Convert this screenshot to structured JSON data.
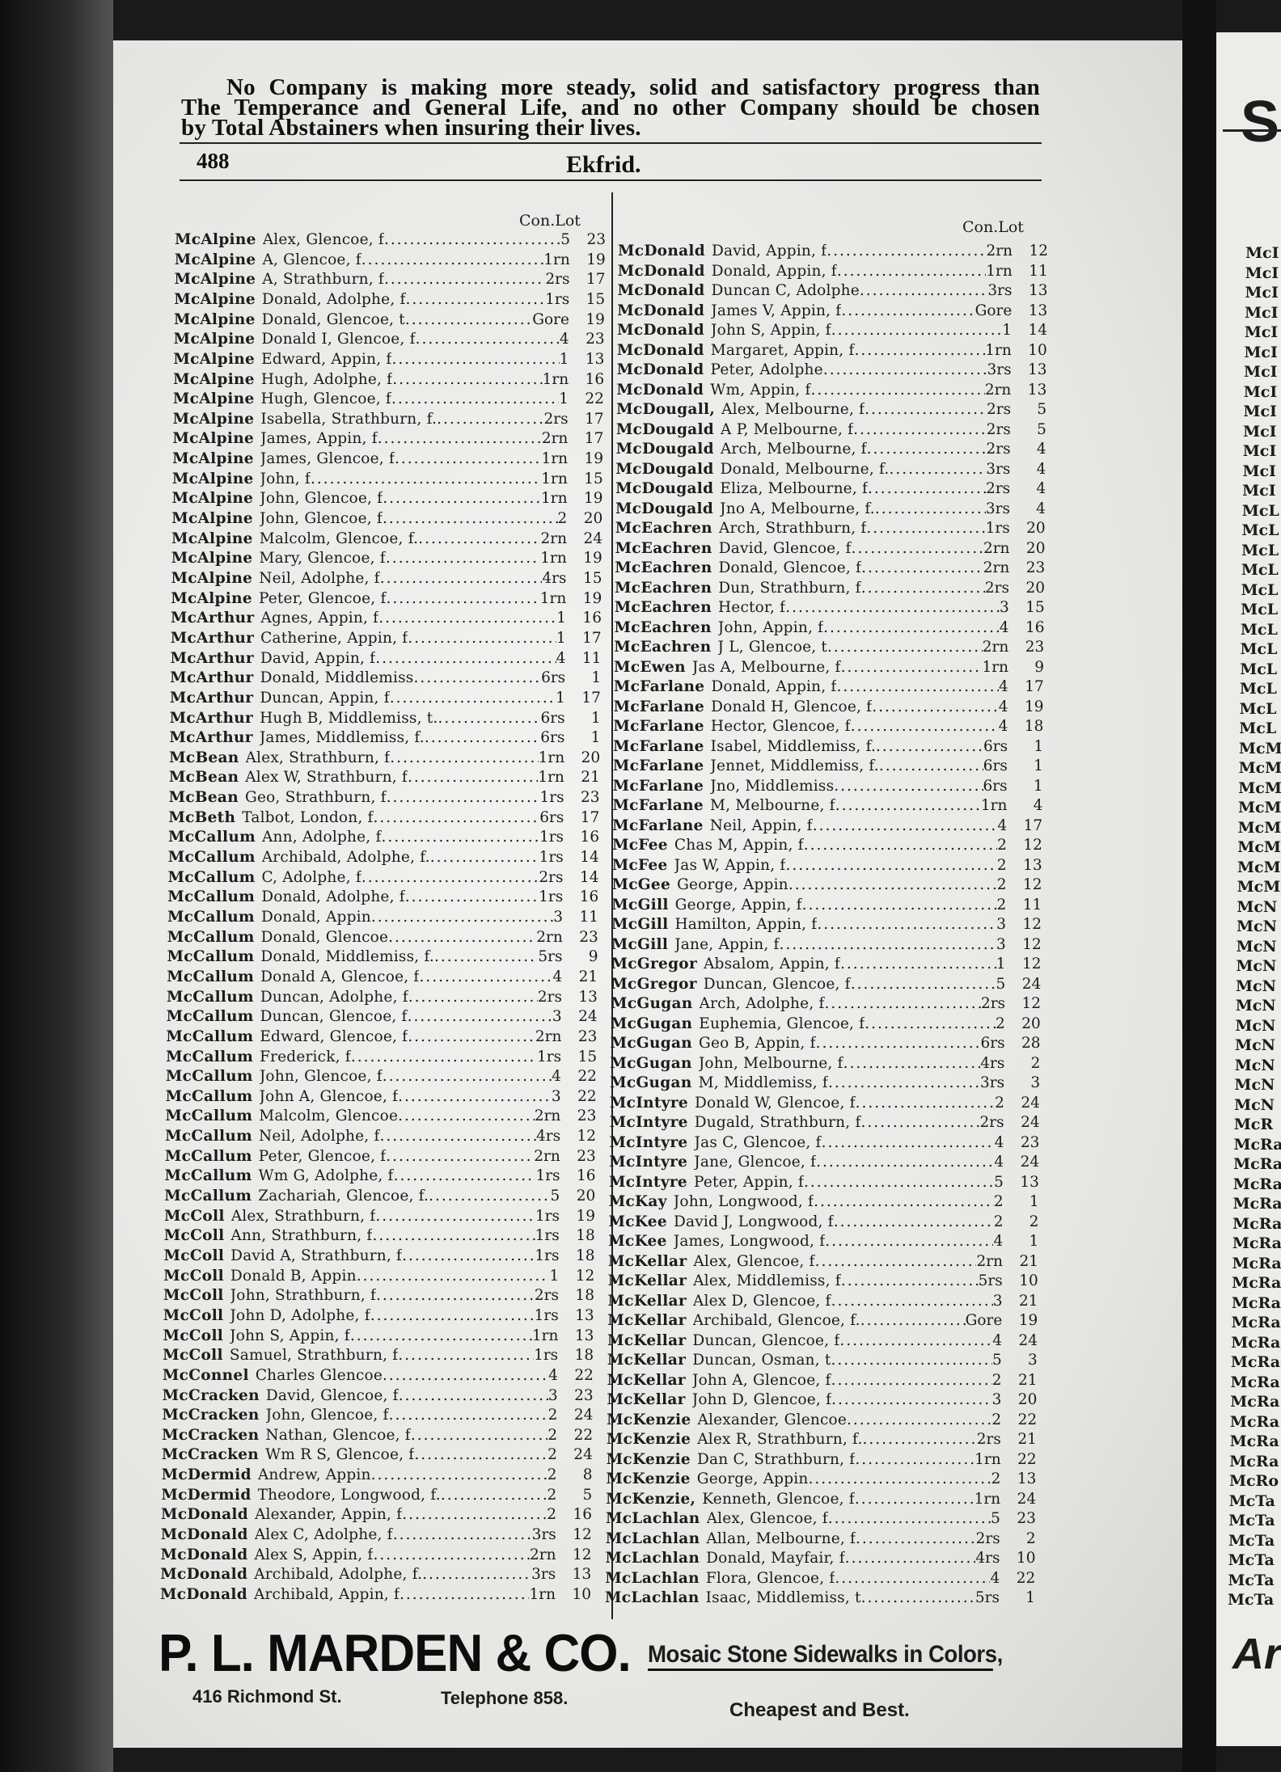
{
  "header_ad": {
    "line1": "No Company is making more steady, solid and satisfactory progress than",
    "line2": "The Temperance and General Life, and no other Company should be chosen",
    "line3": "by Total Abstainers when insuring their lives."
  },
  "page": {
    "number": "488",
    "title": "Ekfrid."
  },
  "column_header": "Con.Lot",
  "left_column": {
    "entries": [
      [
        "McAlpine",
        "Alex, Glencoe, f",
        "5",
        "23"
      ],
      [
        "McAlpine",
        "A, Glencoe, f",
        "1rn",
        "19"
      ],
      [
        "McAlpine",
        "A, Strathburn, f",
        "2rs",
        "17"
      ],
      [
        "McAlpine",
        "Donald, Adolphe, f",
        "1rs",
        "15"
      ],
      [
        "McAlpine",
        "Donald, Glencoe, t",
        "Gore",
        "19"
      ],
      [
        "McAlpine",
        "Donald I, Glencoe, f",
        "4",
        "23"
      ],
      [
        "McAlpine",
        "Edward, Appin, f",
        "1",
        "13"
      ],
      [
        "McAlpine",
        "Hugh, Adolphe, f",
        "1rn",
        "16"
      ],
      [
        "McAlpine",
        "Hugh, Glencoe, f",
        "1",
        "22"
      ],
      [
        "McAlpine",
        "Isabella, Strathburn, f.",
        "2rs",
        "17"
      ],
      [
        "McAlpine",
        "James, Appin, f",
        "2rn",
        "17"
      ],
      [
        "McAlpine",
        "James, Glencoe, f",
        "1rn",
        "19"
      ],
      [
        "McAlpine",
        "John, f",
        "1rn",
        "15"
      ],
      [
        "McAlpine",
        "John, Glencoe, f",
        "1rn",
        "19"
      ],
      [
        "McAlpine",
        "John, Glencoe, f",
        "2",
        "20"
      ],
      [
        "McAlpine",
        "Malcolm, Glencoe, f.",
        "2rn",
        "24"
      ],
      [
        "McAlpine",
        "Mary, Glencoe, f",
        "1rn",
        "19"
      ],
      [
        "McAlpine",
        "Neil, Adolphe, f",
        "4rs",
        "15"
      ],
      [
        "McAlpine",
        "Peter, Glencoe, f",
        "1rn",
        "19"
      ],
      [
        "McArthur",
        "Agnes, Appin, f",
        "1",
        "16"
      ],
      [
        "McArthur",
        "Catherine, Appin, f",
        "1",
        "17"
      ],
      [
        "McArthur",
        "David, Appin, f",
        "4",
        "11"
      ],
      [
        "McArthur",
        "Donald, Middlemiss",
        "6rs",
        "1"
      ],
      [
        "McArthur",
        "Duncan, Appin, f",
        "1",
        "17"
      ],
      [
        "McArthur",
        "Hugh B, Middlemiss, t.",
        "6rs",
        "1"
      ],
      [
        "McArthur",
        "James, Middlemiss, f.",
        "6rs",
        "1"
      ],
      [
        "McBean",
        "Alex, Strathburn, f",
        "1rn",
        "20"
      ],
      [
        "McBean",
        "Alex W, Strathburn, f",
        "1rn",
        "21"
      ],
      [
        "McBean",
        "Geo, Strathburn, f",
        "1rs",
        "23"
      ],
      [
        "McBeth",
        "Talbot, London, f",
        "6rs",
        "17"
      ],
      [
        "McCallum",
        "Ann, Adolphe, f",
        "1rs",
        "16"
      ],
      [
        "McCallum",
        "Archibald, Adolphe, f.",
        "1rs",
        "14"
      ],
      [
        "McCallum",
        "C, Adolphe, f",
        "2rs",
        "14"
      ],
      [
        "McCallum",
        "Donald, Adolphe, f",
        "1rs",
        "16"
      ],
      [
        "McCallum",
        "Donald, Appin",
        "3",
        "11"
      ],
      [
        "McCallum",
        "Donald, Glencoe",
        "2rn",
        "23"
      ],
      [
        "McCallum",
        "Donald, Middlemiss, f.",
        "5rs",
        "9"
      ],
      [
        "McCallum",
        "Donald A, Glencoe, f",
        "4",
        "21"
      ],
      [
        "McCallum",
        "Duncan, Adolphe, f",
        "2rs",
        "13"
      ],
      [
        "McCallum",
        "Duncan, Glencoe, f",
        "3",
        "24"
      ],
      [
        "McCallum",
        "Edward, Glencoe, f",
        "2rn",
        "23"
      ],
      [
        "McCallum",
        "Frederick, f",
        "1rs",
        "15"
      ],
      [
        "McCallum",
        "John, Glencoe, f",
        "4",
        "22"
      ],
      [
        "McCallum",
        "John A, Glencoe, f",
        "3",
        "22"
      ],
      [
        "McCallum",
        "Malcolm, Glencoe",
        "2rn",
        "23"
      ],
      [
        "McCallum",
        "Neil, Adolphe, f",
        "4rs",
        "12"
      ],
      [
        "McCallum",
        "Peter, Glencoe, f",
        "2rn",
        "23"
      ],
      [
        "McCallum",
        "Wm G, Adolphe, f",
        "1rs",
        "16"
      ],
      [
        "McCallum",
        "Zachariah, Glencoe, f.",
        "5",
        "20"
      ],
      [
        "McColl",
        "Alex, Strathburn, f",
        "1rs",
        "19"
      ],
      [
        "McColl",
        "Ann, Strathburn, f",
        "1rs",
        "18"
      ],
      [
        "McColl",
        "David A, Strathburn, f",
        "1rs",
        "18"
      ],
      [
        "McColl",
        "Donald B, Appin",
        "1",
        "12"
      ],
      [
        "McColl",
        "John, Strathburn, f",
        "2rs",
        "18"
      ],
      [
        "McColl",
        "John D, Adolphe, f",
        "1rs",
        "13"
      ],
      [
        "McColl",
        "John S, Appin, f",
        "1rn",
        "13"
      ],
      [
        "McColl",
        "Samuel, Strathburn, f",
        "1rs",
        "18"
      ],
      [
        "McConnel",
        "Charles Glencoe",
        "4",
        "22"
      ],
      [
        "McCracken",
        "David, Glencoe, f",
        "3",
        "23"
      ],
      [
        "McCracken",
        "John, Glencoe, f",
        "2",
        "24"
      ],
      [
        "McCracken",
        "Nathan, Glencoe, f",
        "2",
        "22"
      ],
      [
        "McCracken",
        "Wm R S, Glencoe, f",
        "2",
        "24"
      ],
      [
        "McDermid",
        "Andrew, Appin",
        "2",
        "8"
      ],
      [
        "McDermid",
        "Theodore, Longwood, f.",
        "2",
        "5"
      ],
      [
        "McDonald",
        "Alexander, Appin, f",
        "2",
        "16"
      ],
      [
        "McDonald",
        "Alex C, Adolphe, f",
        "3rs",
        "12"
      ],
      [
        "McDonald",
        "Alex S, Appin, f",
        "2rn",
        "12"
      ],
      [
        "McDonald",
        "Archibald, Adolphe, f.",
        "3rs",
        "13"
      ],
      [
        "McDonald",
        "Archibald, Appin, f",
        "1rn",
        "10"
      ]
    ]
  },
  "right_column": {
    "entries": [
      [
        "McDonald",
        "David, Appin, f",
        "2rn",
        "12"
      ],
      [
        "McDonald",
        "Donald, Appin, f",
        "1rn",
        "11"
      ],
      [
        "McDonald",
        "Duncan C, Adolphe",
        "3rs",
        "13"
      ],
      [
        "McDonald",
        "James V, Appin, f",
        "Gore",
        "13"
      ],
      [
        "McDonald",
        "John S, Appin, f",
        "1",
        "14"
      ],
      [
        "McDonald",
        "Margaret, Appin, f",
        "1rn",
        "10"
      ],
      [
        "McDonald",
        "Peter, Adolphe",
        "3rs",
        "13"
      ],
      [
        "McDonald",
        "Wm, Appin, f",
        "2rn",
        "13"
      ],
      [
        "McDougall,",
        "Alex, Melbourne, f",
        "2rs",
        "5"
      ],
      [
        "McDougald",
        "A P, Melbourne, f",
        "2rs",
        "5"
      ],
      [
        "McDougald",
        "Arch, Melbourne, f",
        "2rs",
        "4"
      ],
      [
        "McDougald",
        "Donald, Melbourne, f.",
        "3rs",
        "4"
      ],
      [
        "McDougald",
        "Eliza, Melbourne, f",
        "2rs",
        "4"
      ],
      [
        "McDougald",
        "Jno A, Melbourne, f.",
        "3rs",
        "4"
      ],
      [
        "McEachren",
        "Arch, Strathburn, f",
        "1rs",
        "20"
      ],
      [
        "McEachren",
        "David, Glencoe, f",
        "2rn",
        "20"
      ],
      [
        "McEachren",
        "Donald, Glencoe, f",
        "2rn",
        "23"
      ],
      [
        "McEachren",
        "Dun, Strathburn, f",
        "2rs",
        "20"
      ],
      [
        "McEachren",
        "Hector, f",
        "3",
        "15"
      ],
      [
        "McEachren",
        "John, Appin, f",
        "4",
        "16"
      ],
      [
        "McEachren",
        "J L, Glencoe, t",
        "2rn",
        "23"
      ],
      [
        "McEwen",
        "Jas A, Melbourne, f",
        "1rn",
        "9"
      ],
      [
        "McFarlane",
        "Donald, Appin, f",
        "4",
        "17"
      ],
      [
        "McFarlane",
        "Donald H, Glencoe, f",
        "4",
        "19"
      ],
      [
        "McFarlane",
        "Hector, Glencoe, f",
        "4",
        "18"
      ],
      [
        "McFarlane",
        "Isabel, Middlemiss, f.",
        "6rs",
        "1"
      ],
      [
        "McFarlane",
        "Jennet, Middlemiss, f.",
        "6rs",
        "1"
      ],
      [
        "McFarlane",
        "Jno, Middlemiss",
        "6rs",
        "1"
      ],
      [
        "McFarlane",
        "M, Melbourne, f",
        "1rn",
        "4"
      ],
      [
        "McFarlane",
        "Neil, Appin, f",
        "4",
        "17"
      ],
      [
        "McFee",
        "Chas M, Appin, f",
        "2",
        "12"
      ],
      [
        "McFee",
        "Jas W, Appin, f",
        "2",
        "13"
      ],
      [
        "McGee",
        "George, Appin",
        "2",
        "12"
      ],
      [
        "McGill",
        "George, Appin, f",
        "2",
        "11"
      ],
      [
        "McGill",
        "Hamilton, Appin, f",
        "3",
        "12"
      ],
      [
        "McGill",
        "Jane, Appin, f",
        "3",
        "12"
      ],
      [
        "McGregor",
        "Absalom, Appin, f",
        "1",
        "12"
      ],
      [
        "McGregor",
        "Duncan, Glencoe, f",
        "5",
        "24"
      ],
      [
        "McGugan",
        "Arch, Adolphe, f",
        "2rs",
        "12"
      ],
      [
        "McGugan",
        "Euphemia, Glencoe, f",
        "2",
        "20"
      ],
      [
        "McGugan",
        "Geo B, Appin, f",
        "6rs",
        "28"
      ],
      [
        "McGugan",
        "John, Melbourne, f",
        "4rs",
        "2"
      ],
      [
        "McGugan",
        "M, Middlemiss, f",
        "3rs",
        "3"
      ],
      [
        "McIntyre",
        "Donald W, Glencoe, f",
        "2",
        "24"
      ],
      [
        "McIntyre",
        "Dugald, Strathburn, f",
        "2rs",
        "24"
      ],
      [
        "McIntyre",
        "Jas C, Glencoe, f",
        "4",
        "23"
      ],
      [
        "McIntyre",
        "Jane, Glencoe, f",
        "4",
        "24"
      ],
      [
        "McIntyre",
        "Peter, Appin, f",
        "5",
        "13"
      ],
      [
        "McKay",
        "John, Longwood, f",
        "2",
        "1"
      ],
      [
        "McKee",
        "David J, Longwood, f",
        "2",
        "2"
      ],
      [
        "McKee",
        "James, Longwood, f",
        "4",
        "1"
      ],
      [
        "McKellar",
        "Alex, Glencoe, f",
        "2rn",
        "21"
      ],
      [
        "McKellar",
        "Alex, Middlemiss, f",
        "5rs",
        "10"
      ],
      [
        "McKellar",
        "Alex D, Glencoe, f",
        "3",
        "21"
      ],
      [
        "McKellar",
        "Archibald, Glencoe, f.",
        "Gore",
        "19"
      ],
      [
        "McKellar",
        "Duncan, Glencoe, f",
        "4",
        "24"
      ],
      [
        "McKellar",
        "Duncan, Osman, t",
        "5",
        "3"
      ],
      [
        "McKellar",
        "John A, Glencoe, f",
        "2",
        "21"
      ],
      [
        "McKellar",
        "John D, Glencoe, f",
        "3",
        "20"
      ],
      [
        "McKenzie",
        "Alexander, Glencoe",
        "2",
        "22"
      ],
      [
        "McKenzie",
        "Alex R, Strathburn, f.",
        "2rs",
        "21"
      ],
      [
        "McKenzie",
        "Dan C, Strathburn, f",
        "1rn",
        "22"
      ],
      [
        "McKenzie",
        "George, Appin",
        "2",
        "13"
      ],
      [
        "McKenzie,",
        "Kenneth, Glencoe, f",
        "1rn",
        "24"
      ],
      [
        "McLachlan",
        "Alex, Glencoe, f",
        "5",
        "23"
      ],
      [
        "McLachlan",
        "Allan, Melbourne, f",
        "2rs",
        "2"
      ],
      [
        "McLachlan",
        "Donald, Mayfair, f",
        "4rs",
        "10"
      ],
      [
        "McLachlan",
        "Flora, Glencoe, f",
        "4",
        "22"
      ],
      [
        "McLachlan",
        "Isaac, Middlemiss, t",
        "5rs",
        "1"
      ]
    ]
  },
  "adjacent_page": {
    "header_fragment": "S",
    "footer_fragment": "Ar",
    "fragments": [
      "McI",
      "McI",
      "McI",
      "McI",
      "McI",
      "McI",
      "McI",
      "McI",
      "McI",
      "McI",
      "McI",
      "McI",
      "McI",
      "McL",
      "McL",
      "McL",
      "McL",
      "McL",
      "McL",
      "McL",
      "McL",
      "McL",
      "McL",
      "McL",
      "McL",
      "McM",
      "McM",
      "McM",
      "McM",
      "McM",
      "McM",
      "McM",
      "McM",
      "McN",
      "McN",
      "McN",
      "McN",
      "McN",
      "McN",
      "McN",
      "McN",
      "McN",
      "McN",
      "McN",
      "McR",
      "McRa",
      "McRa",
      "McRa",
      "McRa",
      "McRa",
      "McRa",
      "McRa",
      "McRa",
      "McRa",
      "McRa",
      "McRa",
      "McRa",
      "McRa",
      "McRa",
      "McRa",
      "McRa",
      "McRa",
      "McRo",
      "McTa",
      "McTa",
      "McTa",
      "McTa",
      "McTa",
      "McTa"
    ]
  },
  "footer_ad": {
    "company": "P. L. MARDEN & CO.",
    "slogan": "Mosaic Stone Sidewalks in Colors,",
    "address": "416 Richmond St.",
    "telephone": "Telephone 858.",
    "tagline": "Cheapest and Best."
  }
}
